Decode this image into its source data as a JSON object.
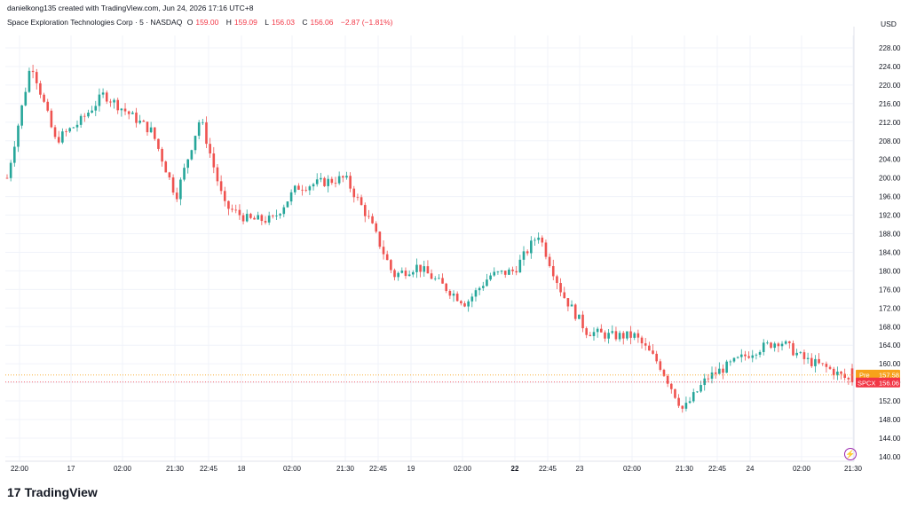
{
  "header": {
    "attribution": "danielkong135 created with TradingView.com, Jun 24, 2026 17:16 UTC+8"
  },
  "legend": {
    "symbol": "Space Exploration Technologies Corp · 5 · NASDAQ",
    "open_label": "O",
    "open": "159.00",
    "high_label": "H",
    "high": "159.09",
    "low_label": "L",
    "low": "156.03",
    "close_label": "C",
    "close": "156.06",
    "change": "−2.87 (−1.81%)"
  },
  "price_axis": {
    "currency": "USD",
    "ticks": [
      "228.00",
      "224.00",
      "220.00",
      "216.00",
      "212.00",
      "208.00",
      "204.00",
      "200.00",
      "196.00",
      "192.00",
      "188.00",
      "184.00",
      "180.00",
      "176.00",
      "172.00",
      "168.00",
      "164.00",
      "160.00",
      "156.00",
      "152.00",
      "148.00",
      "144.00",
      "140.00"
    ]
  },
  "time_axis": {
    "ticks": [
      "22:00",
      "17",
      "02:00",
      "21:30",
      "22:45",
      "18",
      "02:00",
      "21:30",
      "22:45",
      "19",
      "02:00",
      "22",
      "22:45",
      "23",
      "02:00",
      "21:30",
      "22:45",
      "24",
      "02:00",
      "21:30"
    ]
  },
  "price_labels": {
    "pre": {
      "tag": "Pre",
      "value": "157.58",
      "color": "#f7a21b"
    },
    "last": {
      "tag": "SPCX",
      "value": "156.06",
      "color": "#f23645"
    }
  },
  "footer": {
    "logo": "17",
    "brand": "TradingView"
  },
  "icons": {
    "replay": "replay-icon"
  },
  "colors": {
    "up": "#26a69a",
    "down": "#ef5350",
    "grid": "#f0f3fa"
  },
  "chart_data": {
    "type": "candlestick",
    "ylim": [
      140,
      230
    ],
    "y_unit": "USD",
    "approx_close_path": [
      {
        "x": "22:00",
        "y": 200
      },
      {
        "x": "~",
        "y": 225
      },
      {
        "x": "~",
        "y": 208
      },
      {
        "x": "17",
        "y": 212
      },
      {
        "x": "~",
        "y": 218
      },
      {
        "x": "02:00",
        "y": 214
      },
      {
        "x": "~",
        "y": 210
      },
      {
        "x": "21:30",
        "y": 196
      },
      {
        "x": "~",
        "y": 213
      },
      {
        "x": "~",
        "y": 194
      },
      {
        "x": "22:45",
        "y": 191
      },
      {
        "x": "18",
        "y": 191
      },
      {
        "x": "~",
        "y": 198
      },
      {
        "x": "02:00",
        "y": 199
      },
      {
        "x": "~",
        "y": 200
      },
      {
        "x": "21:30",
        "y": 191
      },
      {
        "x": "~",
        "y": 179
      },
      {
        "x": "22:45",
        "y": 181
      },
      {
        "x": "~",
        "y": 177
      },
      {
        "x": "19",
        "y": 173
      },
      {
        "x": "~",
        "y": 179
      },
      {
        "x": "02:00",
        "y": 180
      },
      {
        "x": "~",
        "y": 188
      },
      {
        "x": "22",
        "y": 175
      },
      {
        "x": "22:45",
        "y": 167
      },
      {
        "x": "23",
        "y": 166
      },
      {
        "x": "02:00",
        "y": 166
      },
      {
        "x": "~",
        "y": 160
      },
      {
        "x": "21:30",
        "y": 150
      },
      {
        "x": "22:45",
        "y": 157
      },
      {
        "x": "~",
        "y": 160
      },
      {
        "x": "24",
        "y": 163
      },
      {
        "x": "~",
        "y": 165
      },
      {
        "x": "02:00",
        "y": 161
      },
      {
        "x": "~",
        "y": 159
      },
      {
        "x": "21:30",
        "y": 156.06
      }
    ]
  }
}
